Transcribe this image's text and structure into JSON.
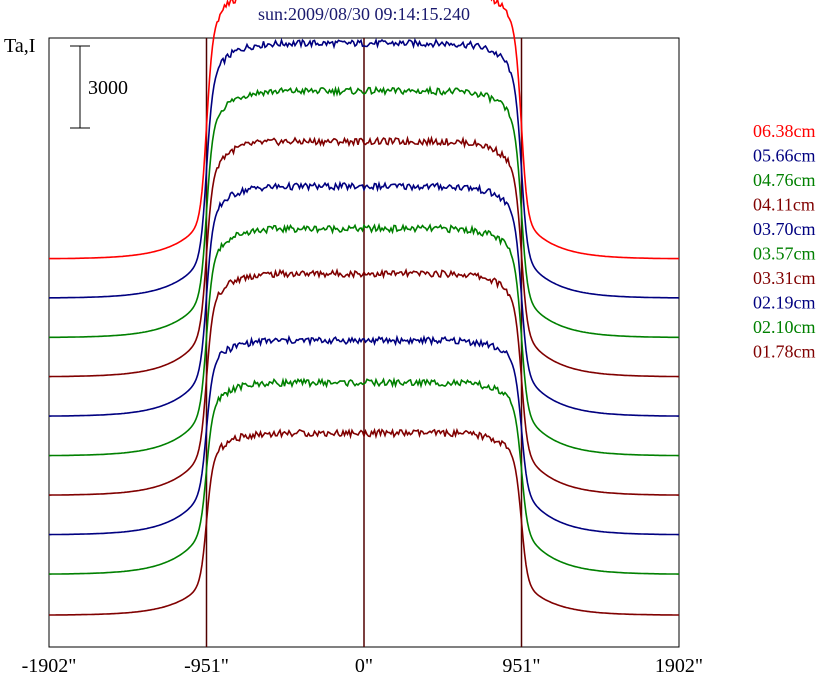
{
  "chart_data": {
    "type": "line",
    "title": "sun:2009/08/30 09:14:15.240",
    "ylabel": "Ta,I",
    "scale_bar_label": "3000",
    "x_ticks": [
      {
        "value": -1902,
        "label": "-1902\""
      },
      {
        "value": -951,
        "label": "-951\""
      },
      {
        "value": 0,
        "label": "0\""
      },
      {
        "value": 951,
        "label": "951\""
      },
      {
        "value": 1902,
        "label": "1902\""
      }
    ],
    "xlim": [
      -1902,
      1902
    ],
    "vertical_lines": [
      -951,
      0,
      951
    ],
    "grid": false,
    "legend_position": "right",
    "series": [
      {
        "name": "06.38cm",
        "color": "#ff0000",
        "offset": 9,
        "disk_level": 10000,
        "quiet_level": 1700
      },
      {
        "name": "05.66cm",
        "color": "#000080",
        "offset": 8,
        "disk_level": 9500,
        "quiet_level": 1800
      },
      {
        "name": "04.76cm",
        "color": "#008000",
        "offset": 7,
        "disk_level": 9200,
        "quiet_level": 1800
      },
      {
        "name": "04.11cm",
        "color": "#800000",
        "offset": 6,
        "disk_level": 8800,
        "quiet_level": 1900
      },
      {
        "name": "03.70cm",
        "color": "#000080",
        "offset": 5,
        "disk_level": 8600,
        "quiet_level": 1900
      },
      {
        "name": "03.57cm",
        "color": "#008000",
        "offset": 4,
        "disk_level": 8500,
        "quiet_level": 1900
      },
      {
        "name": "03.31cm",
        "color": "#800000",
        "offset": 3,
        "disk_level": 8300,
        "quiet_level": 1900
      },
      {
        "name": "02.19cm",
        "color": "#000080",
        "offset": 2,
        "disk_level": 7300,
        "quiet_level": 1900
      },
      {
        "name": "02.10cm",
        "color": "#008000",
        "offset": 1,
        "disk_level": 7200,
        "quiet_level": 1900
      },
      {
        "name": "01.78cm",
        "color": "#800000",
        "offset": 0,
        "disk_level": 6800,
        "quiet_level": 1400
      }
    ]
  }
}
